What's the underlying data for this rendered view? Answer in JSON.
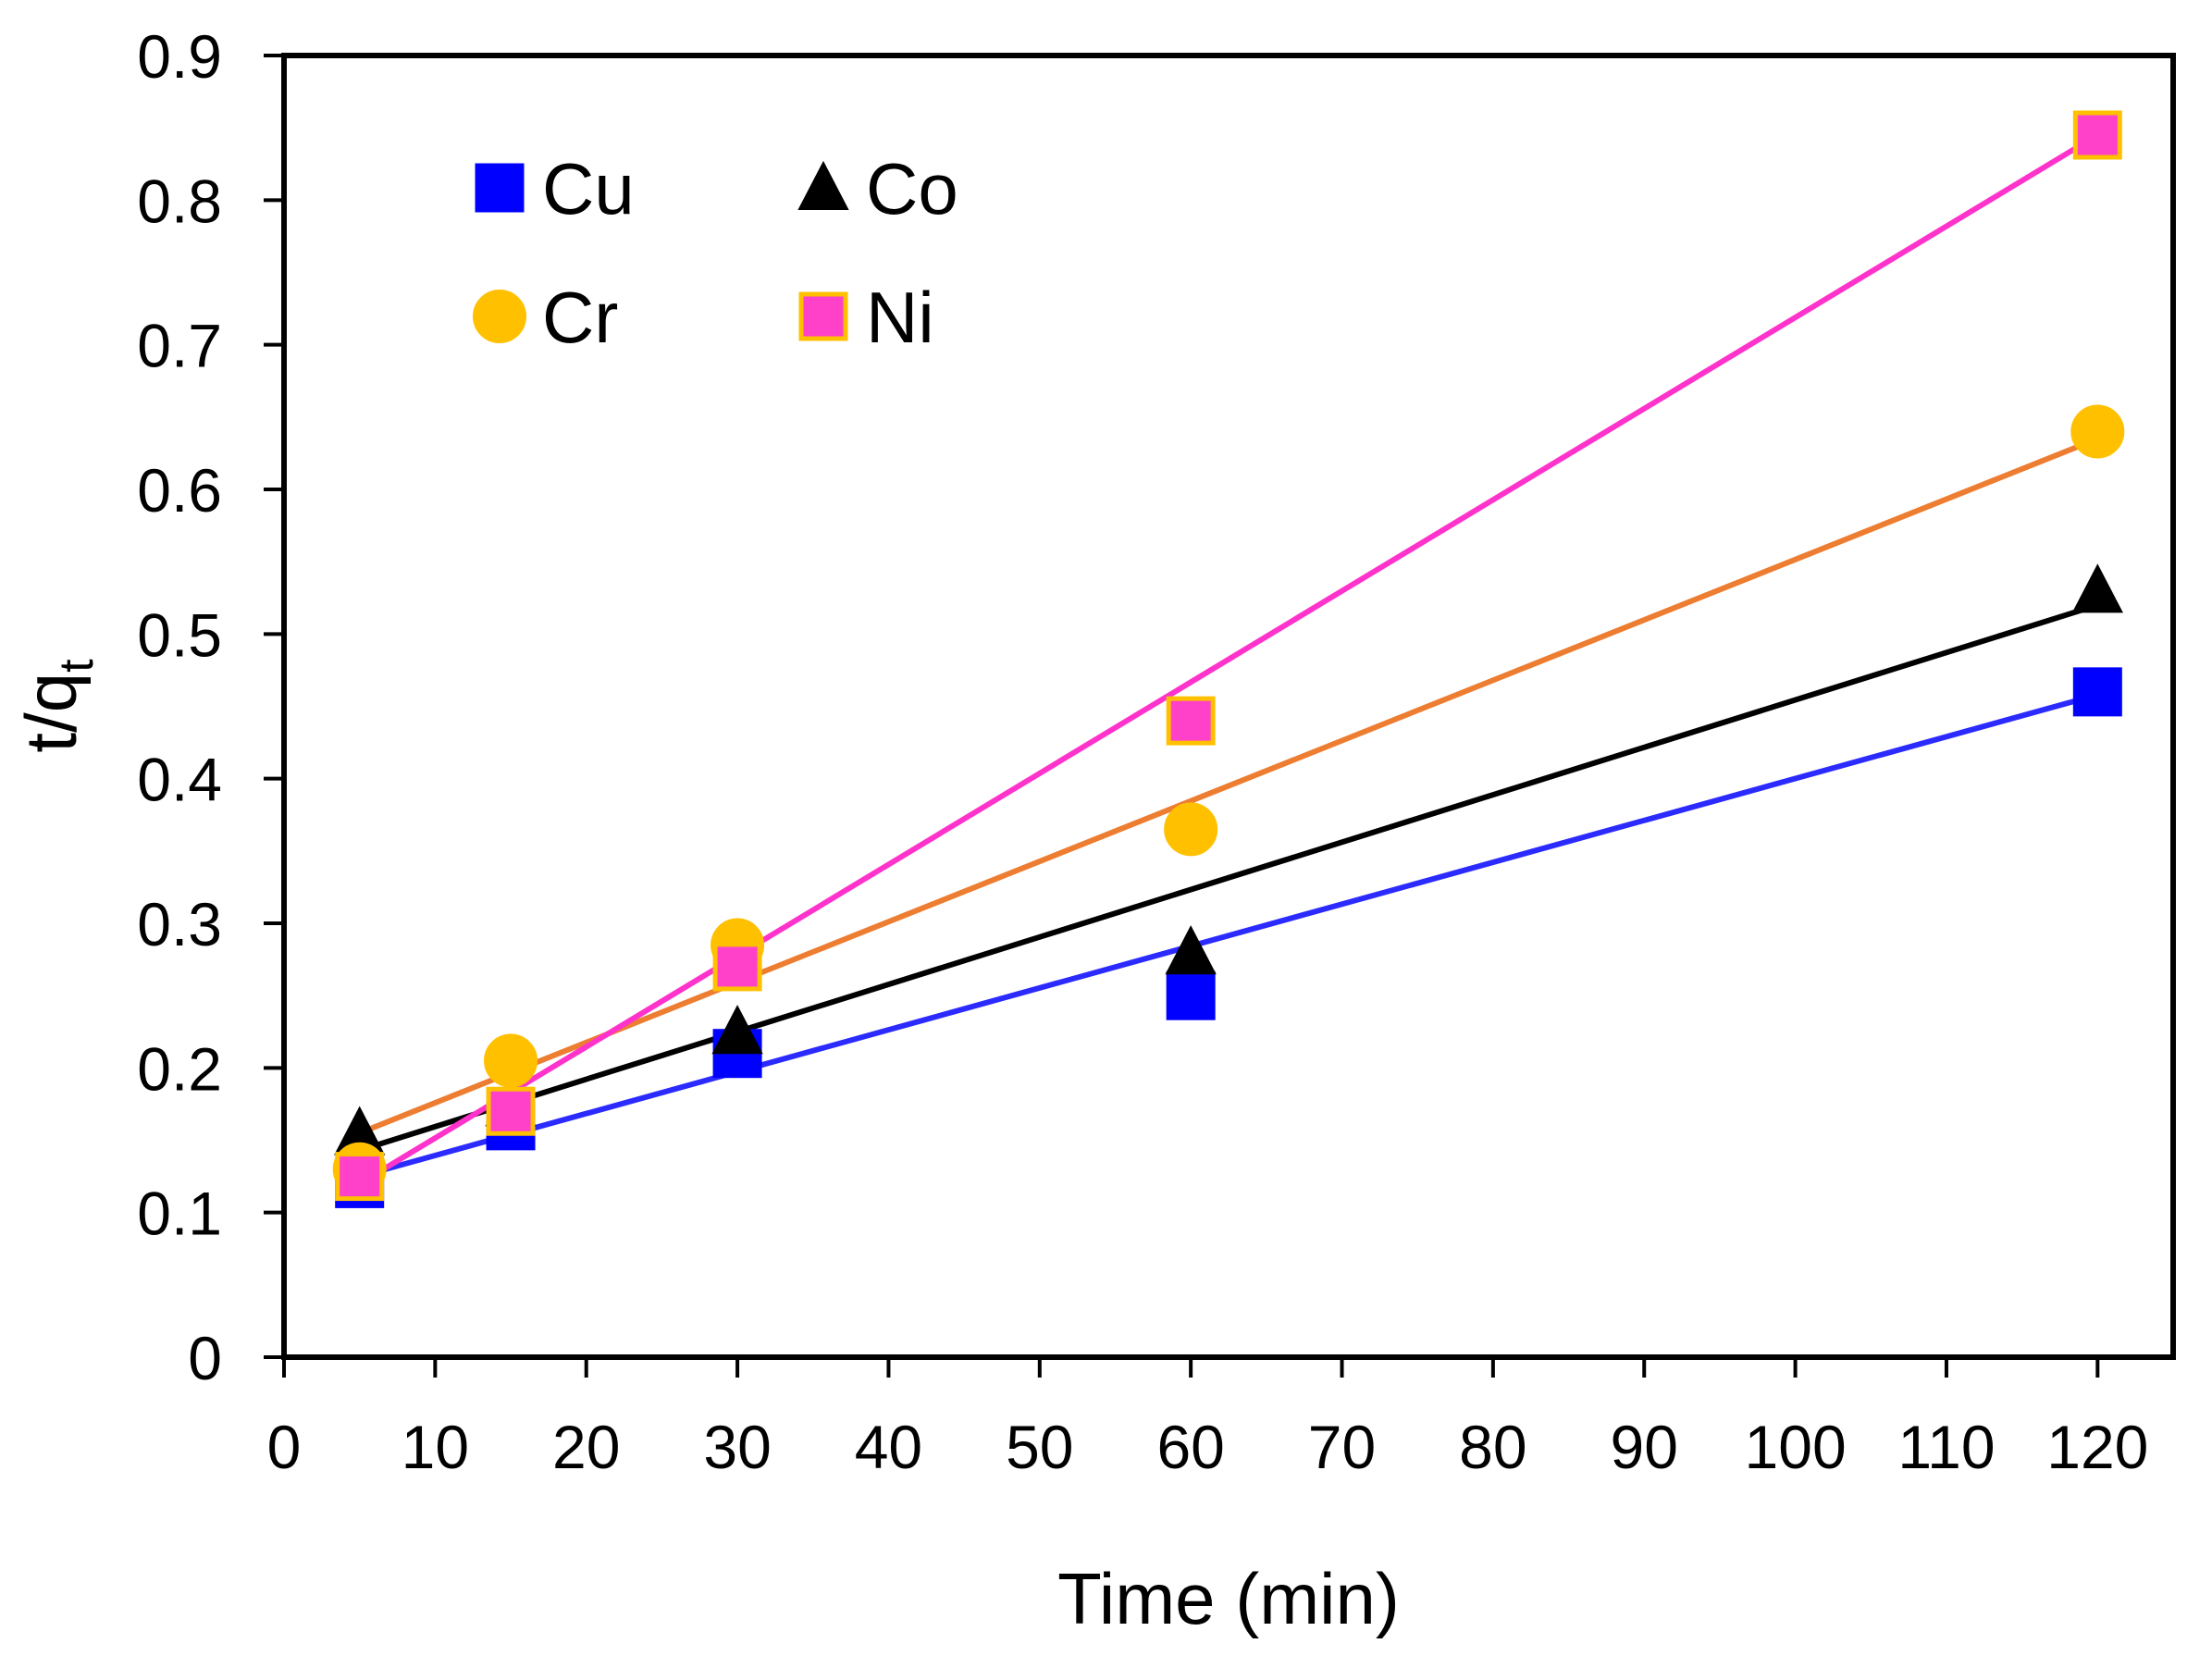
{
  "chart_data": {
    "type": "scatter",
    "title": "",
    "xlabel": "Time (min)",
    "ylabel_main": "t/q",
    "ylabel_sub": "t",
    "xlim": [
      0,
      125
    ],
    "ylim": [
      0,
      0.9
    ],
    "xticks": [
      0,
      10,
      20,
      30,
      40,
      50,
      60,
      70,
      80,
      90,
      100,
      110,
      120
    ],
    "yticks": [
      0,
      0.1,
      0.2,
      0.3,
      0.4,
      0.5,
      0.6,
      0.7,
      0.8,
      0.9
    ],
    "ytick_labels": [
      "0",
      "0.1",
      "0.2",
      "0.3",
      "0.4",
      "0.5",
      "0.6",
      "0.7",
      "0.8",
      "0.9"
    ],
    "grid": false,
    "legend_position": "top-left",
    "x": [
      5,
      15,
      30,
      60,
      120
    ],
    "series": [
      {
        "name": "Cu",
        "marker": "square",
        "color": "#0000FF",
        "marker_stroke": "#0000FF",
        "line_color": "#2B2BFF",
        "values": [
          0.12,
          0.16,
          0.21,
          0.25,
          0.46
        ],
        "fit": {
          "x": [
            5,
            120
          ],
          "y": [
            0.125,
            0.458
          ]
        }
      },
      {
        "name": "Co",
        "marker": "triangle",
        "color": "#000000",
        "marker_stroke": "#000000",
        "line_color": "#000000",
        "values": [
          0.155,
          0.175,
          0.225,
          0.28,
          0.53
        ],
        "fit": {
          "x": [
            5,
            120
          ],
          "y": [
            0.143,
            0.52
          ]
        }
      },
      {
        "name": "Cr",
        "marker": "circle",
        "color": "#FFC000",
        "marker_stroke": "#FFC000",
        "line_color": "#ED7D31",
        "values": [
          0.13,
          0.205,
          0.285,
          0.365,
          0.64
        ],
        "fit": {
          "x": [
            5,
            120
          ],
          "y": [
            0.155,
            0.635
          ]
        }
      },
      {
        "name": "Ni",
        "marker": "square",
        "color": "#FF40C8",
        "marker_stroke": "#FFC000",
        "line_color": "#FF33CC",
        "values": [
          0.125,
          0.17,
          0.27,
          0.44,
          0.845
        ],
        "fit": {
          "x": [
            5,
            120
          ],
          "y": [
            0.12,
            0.845
          ]
        }
      }
    ],
    "legend": [
      {
        "name": "Cu",
        "marker": "square",
        "color": "#0000FF",
        "stroke": "#0000FF"
      },
      {
        "name": "Co",
        "marker": "triangle",
        "color": "#000000",
        "stroke": "#000000"
      },
      {
        "name": "Cr",
        "marker": "circle",
        "color": "#FFC000",
        "stroke": "#FFC000"
      },
      {
        "name": "Ni",
        "marker": "square",
        "color": "#FF40C8",
        "stroke": "#FFC000"
      }
    ]
  }
}
